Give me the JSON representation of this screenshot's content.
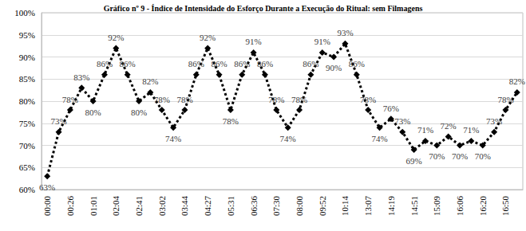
{
  "chart_data": {
    "type": "line",
    "title": "Gráfico nº 9 - Índice de Intensidade do Esforço Durante a Execução do Ritual: sem Filmagens",
    "categories": [
      "00:00",
      null,
      "00:26",
      null,
      "01:01",
      null,
      "02:04",
      null,
      "02:41",
      null,
      "03:02",
      null,
      "03:44",
      null,
      "04:27",
      null,
      "05:31",
      null,
      "06:36",
      null,
      "07:30",
      null,
      "08:00",
      null,
      "09:52",
      null,
      "10:14",
      null,
      "13:07",
      null,
      "14:19",
      null,
      "14:51",
      null,
      "15:09",
      null,
      "16:06",
      null,
      "16:20",
      null,
      "16:50",
      null
    ],
    "values": [
      63,
      73,
      78,
      83,
      80,
      86,
      92,
      86,
      80,
      82,
      78,
      74,
      78,
      86,
      92,
      86,
      78,
      86,
      91,
      86,
      78,
      74,
      78,
      86,
      91,
      90,
      93,
      86,
      78,
      74,
      76,
      73,
      69,
      71,
      70,
      72,
      70,
      71,
      70,
      73,
      78,
      82
    ],
    "value_labels": [
      "63%",
      "73%",
      "78%",
      "83%",
      "80%",
      "86%",
      "92%",
      "86%",
      "80%",
      "82%",
      "78%",
      "74%",
      "78%",
      "86%",
      "92%",
      "86%",
      "78%",
      "86%",
      "91%",
      "86%",
      "78%",
      "74%",
      "78%",
      "86%",
      "91%",
      "90%",
      "93%",
      "86%",
      "78%",
      "74%",
      "76%",
      "73%",
      "69%",
      "71%",
      "70%",
      "72%",
      "70%",
      "71%",
      "70%",
      "73%",
      "78%",
      "82%"
    ],
    "color": "#000000",
    "marker": "diamond",
    "line_style": "dotted",
    "data_labels": true,
    "grid": true,
    "ylim": [
      60,
      100
    ],
    "yticks": [
      {
        "value": 60,
        "label": "60%"
      },
      {
        "value": 65,
        "label": "65%"
      },
      {
        "value": 70,
        "label": "70%"
      },
      {
        "value": 75,
        "label": "75%"
      },
      {
        "value": 80,
        "label": "80%"
      },
      {
        "value": 85,
        "label": "85%"
      },
      {
        "value": 90,
        "label": "90%"
      },
      {
        "value": 95,
        "label": "95%"
      },
      {
        "value": 100,
        "label": "100%"
      }
    ]
  }
}
